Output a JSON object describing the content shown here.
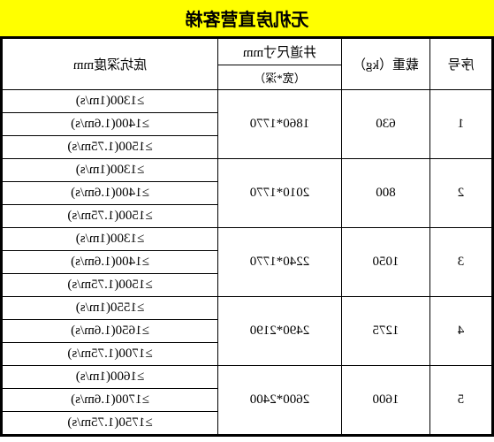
{
  "title": "无机房直营客梯",
  "headers": {
    "seq": "序号",
    "load": "载重（kg）",
    "shaft_top": "井道尺寸mm",
    "shaft_sub": "（宽*深）",
    "depth": "底坑深度mm"
  },
  "rows": [
    {
      "seq": "1",
      "load": "630",
      "shaft": "1860*1770",
      "depths": [
        "≥1300(1m/s)",
        "≥1400(1.6m/s)",
        "≥1500(1.75m/s)"
      ]
    },
    {
      "seq": "2",
      "load": "800",
      "shaft": "2010*1770",
      "depths": [
        "≥1300(1m/s)",
        "≥1400(1.6m/s)",
        "≥1500(1.75m/s)"
      ]
    },
    {
      "seq": "3",
      "load": "1050",
      "shaft": "2240*1770",
      "depths": [
        "≥1300(1m/s)",
        "≥1400(1.6m/s)",
        "≥1500(1.75m/s)"
      ]
    },
    {
      "seq": "4",
      "load": "1275",
      "shaft": "2490*2190",
      "depths": [
        "≥1550(1m/s)",
        "≥1650(1.6m/s)",
        "≥1700(1.75m/s)"
      ]
    },
    {
      "seq": "5",
      "load": "1600",
      "shaft": "2600*2400",
      "depths": [
        "≥1600(1m/s)",
        "≥1700(1.6m/s)",
        "≥1750(1.75m/s)"
      ]
    }
  ],
  "colors": {
    "title_bg": "#ffff00",
    "border": "#000000",
    "bg": "#ffffff"
  }
}
